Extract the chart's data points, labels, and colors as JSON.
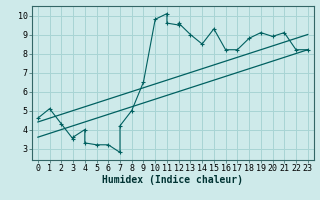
{
  "xlabel": "Humidex (Indice chaleur)",
  "ylabel": "",
  "bg_color": "#ceeaea",
  "grid_color": "#a8d4d4",
  "line_color": "#006060",
  "xlim": [
    -0.5,
    23.5
  ],
  "ylim": [
    2.4,
    10.5
  ],
  "xticks": [
    0,
    1,
    2,
    3,
    4,
    5,
    6,
    7,
    8,
    9,
    10,
    11,
    12,
    13,
    14,
    15,
    16,
    17,
    18,
    19,
    20,
    21,
    22,
    23
  ],
  "yticks": [
    3,
    4,
    5,
    6,
    7,
    8,
    9,
    10
  ],
  "scatter_x": [
    0,
    1,
    2,
    3,
    3,
    4,
    4,
    5,
    6,
    7,
    7,
    8,
    9,
    10,
    11,
    11,
    12,
    12,
    13,
    14,
    15,
    16,
    17,
    18,
    19,
    20,
    21,
    22,
    23
  ],
  "scatter_y": [
    4.6,
    5.1,
    4.3,
    3.5,
    3.6,
    4.0,
    3.3,
    3.2,
    3.2,
    2.8,
    4.2,
    5.0,
    6.5,
    9.8,
    10.1,
    9.6,
    9.5,
    9.6,
    9.0,
    8.5,
    9.3,
    8.2,
    8.2,
    8.8,
    9.1,
    8.9,
    9.1,
    8.2,
    8.2
  ],
  "reg_line1_x": [
    0,
    23
  ],
  "reg_line1_y": [
    3.6,
    8.2
  ],
  "reg_line2_x": [
    0,
    23
  ],
  "reg_line2_y": [
    4.4,
    9.0
  ],
  "fontsize_label": 7,
  "fontsize_tick": 6,
  "fontsize_xlabel": 7
}
